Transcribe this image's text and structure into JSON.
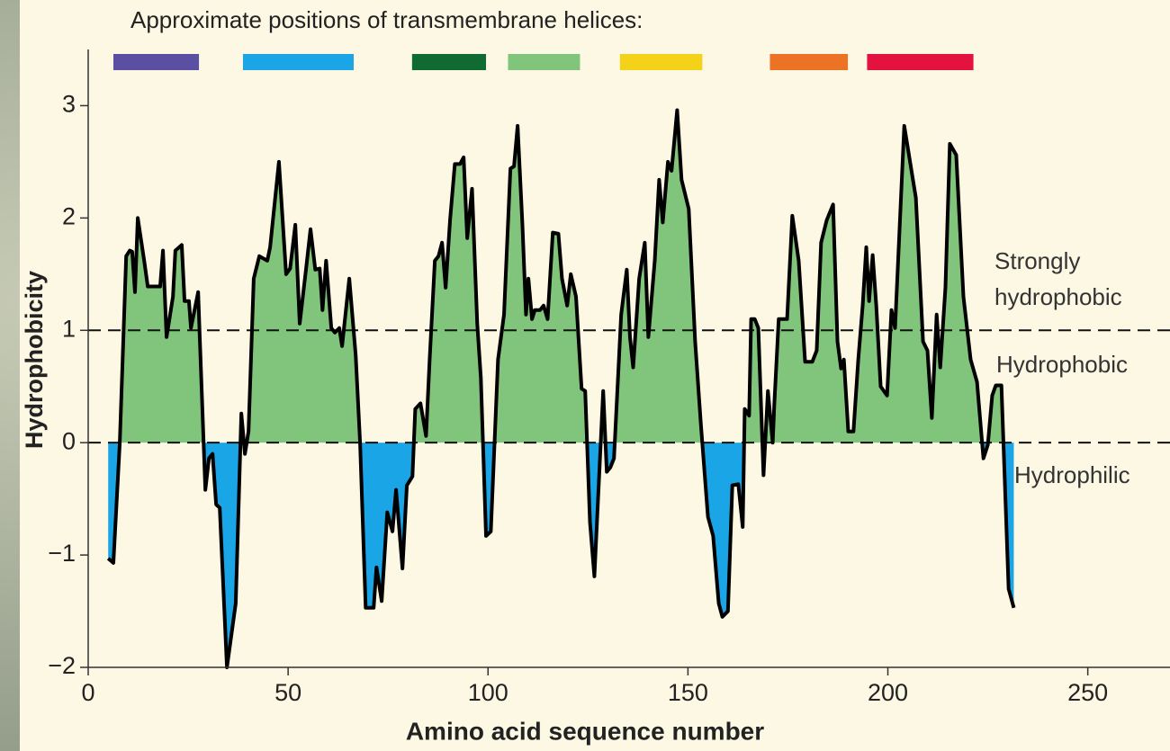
{
  "chart_data": {
    "type": "area-line",
    "helices_label": "Approximate positions of transmembrane helices:",
    "helices": [
      {
        "start": 6.3,
        "end": 27.7,
        "color": "#5a4fa3"
      },
      {
        "start": 38.7,
        "end": 66.4,
        "color": "#1aa5e6"
      },
      {
        "start": 81,
        "end": 99.5,
        "color": "#0f6b32"
      },
      {
        "start": 105,
        "end": 123,
        "color": "#80c57b"
      },
      {
        "start": 133,
        "end": 153.6,
        "color": "#f5d21a"
      },
      {
        "start": 170.5,
        "end": 190,
        "color": "#ec7325"
      },
      {
        "start": 194.8,
        "end": 221.4,
        "color": "#e3123f"
      }
    ],
    "x_label": "Amino acid sequence number",
    "y_label": "Hydrophobicity",
    "xlim": [
      0,
      270
    ],
    "ylim": [
      -2,
      3.5
    ],
    "xticks": [
      0,
      50,
      100,
      150,
      200,
      250
    ],
    "yticks": [
      {
        "value": -2,
        "label": "−2"
      },
      {
        "value": -1,
        "label": "−1"
      },
      0,
      1,
      2,
      3
    ],
    "reference_lines": [
      1,
      0
    ],
    "annotations": [
      "Strongly hydrophobic",
      "Hydrophobic",
      "Hydrophilic"
    ],
    "positive_color": "#80c57b",
    "negative_color": "#1aa5e6",
    "x": [
      5,
      6.3,
      7.9,
      9.5,
      10.4,
      11,
      11.7,
      12.4,
      14,
      14.9,
      18,
      18.7,
      19.6,
      21.2,
      21.8,
      23.4,
      24.1,
      25.2,
      25.7,
      27.5,
      27.9,
      29.3,
      30.2,
      31.1,
      32,
      32.9,
      34.7,
      36.9,
      38.3,
      39.2,
      40.1,
      41.4,
      42.8,
      44.8,
      45.5,
      47.7,
      49.5,
      50.5,
      51.8,
      52.9,
      54.5,
      55.6,
      56.8,
      57.9,
      58.6,
      59.5,
      60.8,
      61.7,
      62.8,
      63.5,
      65.3,
      66.9,
      68,
      69.4,
      71.4,
      72.1,
      73.4,
      74.8,
      76.1,
      77,
      78.6,
      79.7,
      81.1,
      81.8,
      83.1,
      84.5,
      85.4,
      86.7,
      87.6,
      88.5,
      89.4,
      90.5,
      91.7,
      93,
      93.9,
      94.8,
      96,
      97.3,
      98.2,
      99.5,
      100.7,
      102.5,
      104,
      105.6,
      106.5,
      107.4,
      108.6,
      109.5,
      110.1,
      111,
      111.7,
      113,
      113.9,
      114.9,
      116.2,
      117.6,
      118.5,
      119.8,
      120.7,
      122,
      123.4,
      124.3,
      125.5,
      126.6,
      128.8,
      129.7,
      130.6,
      131.5,
      133.3,
      134.7,
      135.5,
      136.3,
      137.8,
      139.2,
      140.1,
      141.7,
      142.8,
      143.7,
      145,
      145.9,
      147.3,
      148.4,
      149.1,
      150.2,
      151.8,
      153.2,
      155,
      156.3,
      157.7,
      158.6,
      160,
      161.1,
      162.6,
      163.7,
      164.2,
      165.3,
      165.8,
      166.7,
      167.6,
      168.9,
      170,
      171.2,
      171.6,
      172.7,
      174.8,
      176.1,
      177.7,
      179.3,
      181.1,
      182.2,
      183.3,
      184.7,
      186.3,
      187.4,
      188.3,
      189,
      190.1,
      191.4,
      192.6,
      193.7,
      194.6,
      195.3,
      196.2,
      197.1,
      198.2,
      199.8,
      200.9,
      201.8,
      204.1,
      207,
      208.8,
      209.9,
      211,
      212.2,
      213.1,
      214.4,
      215.5,
      217.1,
      218.9,
      220.7,
      222.3,
      223.9,
      225,
      226.1,
      227,
      228.4,
      230.2,
      231.5
    ],
    "series": [
      {
        "color": "#000000",
        "values": [
          -1.03,
          -1.07,
          0,
          1.66,
          1.71,
          1.7,
          1.34,
          2.0,
          1.62,
          1.39,
          1.39,
          1.71,
          0.94,
          1.3,
          1.71,
          1.76,
          1.26,
          1.26,
          1.02,
          1.34,
          0.94,
          -0.42,
          -0.14,
          -0.1,
          -0.55,
          -0.58,
          -2.0,
          -1.43,
          0.26,
          -0.1,
          0.1,
          1.46,
          1.66,
          1.62,
          1.74,
          2.5,
          1.5,
          1.55,
          1.94,
          1.06,
          1.55,
          1.9,
          1.54,
          1.55,
          1.18,
          1.62,
          1.02,
          0.98,
          1.02,
          0.86,
          1.46,
          0.78,
          0,
          -1.47,
          -1.47,
          -1.11,
          -1.41,
          -0.62,
          -0.79,
          -0.42,
          -1.12,
          -0.38,
          -0.3,
          0.3,
          0.35,
          0.06,
          0.74,
          1.62,
          1.66,
          1.78,
          1.38,
          1.98,
          2.48,
          2.48,
          2.54,
          1.82,
          2.26,
          1.06,
          0.58,
          -0.83,
          -0.79,
          0.74,
          1.14,
          2.44,
          2.46,
          2.82,
          1.94,
          1.14,
          1.46,
          1.1,
          1.18,
          1.18,
          1.22,
          1.1,
          1.87,
          1.86,
          1.46,
          1.22,
          1.5,
          1.3,
          0.48,
          0.46,
          -0.71,
          -1.19,
          0.46,
          -0.26,
          -0.22,
          -0.14,
          1.14,
          1.54,
          0.94,
          0.67,
          1.46,
          1.78,
          0.94,
          1.62,
          2.34,
          1.96,
          2.5,
          2.42,
          2.96,
          2.34,
          2.24,
          2.08,
          0.9,
          0.18,
          -0.66,
          -0.83,
          -1.43,
          -1.55,
          -1.5,
          -0.38,
          -0.37,
          -0.75,
          0.3,
          0.24,
          1.1,
          1.1,
          1.02,
          -0.29,
          0.46,
          0,
          0.34,
          1.1,
          1.1,
          2.02,
          1.62,
          0.72,
          0.72,
          0.82,
          1.78,
          1.98,
          2.12,
          0.9,
          0.66,
          0.74,
          0.1,
          0.1,
          0.74,
          1.22,
          1.74,
          1.26,
          1.67,
          1.22,
          0.5,
          0.42,
          1.18,
          1.02,
          2.82,
          2.18,
          0.9,
          0.82,
          0.22,
          1.14,
          0.67,
          1.38,
          2.66,
          2.56,
          1.3,
          0.74,
          0.54,
          -0.14,
          -0.02,
          0.42,
          0.51,
          0.51,
          -1.3,
          -1.47
        ]
      }
    ]
  }
}
